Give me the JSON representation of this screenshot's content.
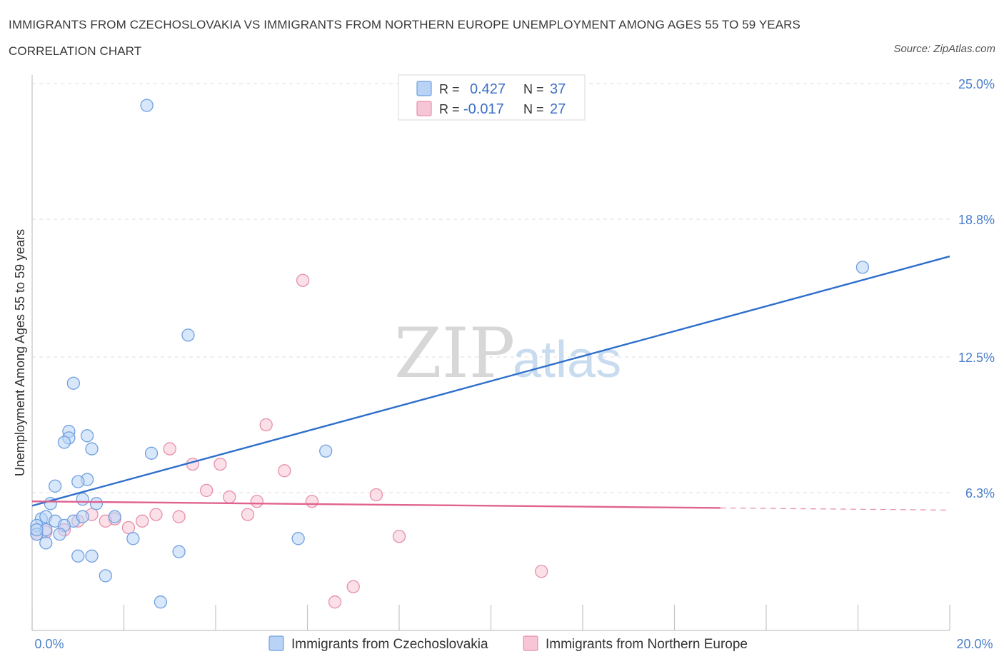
{
  "chart_data": {
    "type": "scatter",
    "title": "IMMIGRANTS FROM CZECHOSLOVAKIA VS IMMIGRANTS FROM NORTHERN EUROPE UNEMPLOYMENT AMONG AGES 55 TO 59 YEARS CORRELATION CHART",
    "source": "Source: ZipAtlas.com",
    "xlabel": "",
    "ylabel": "Unemployment Among Ages 55 to 59 years",
    "xlim": [
      0,
      20
    ],
    "ylim": [
      0,
      25
    ],
    "x_tick_labels": [
      "0.0%",
      "20.0%"
    ],
    "y_ticks": [
      6.3,
      12.5,
      18.8,
      25.0
    ],
    "y_tick_labels": [
      "6.3%",
      "12.5%",
      "18.8%",
      "25.0%"
    ],
    "grid": true,
    "watermark": {
      "zip": "ZIP",
      "atlas": "atlas"
    },
    "series": [
      {
        "name": "Immigrants from Czechoslovakia",
        "color": "#6fa0e0",
        "fill": "#b8d3f5",
        "line_color": "#2e6fcb",
        "R": "0.427",
        "N": "37",
        "trend": {
          "x0": 0.0,
          "y0": 5.7,
          "x1": 20.0,
          "y1": 17.1
        },
        "points": [
          [
            2.5,
            24.0
          ],
          [
            18.1,
            16.6
          ],
          [
            3.4,
            13.5
          ],
          [
            0.9,
            11.3
          ],
          [
            0.8,
            9.1
          ],
          [
            1.2,
            8.9
          ],
          [
            0.8,
            8.8
          ],
          [
            0.7,
            8.6
          ],
          [
            1.3,
            8.3
          ],
          [
            2.6,
            8.1
          ],
          [
            6.4,
            8.2
          ],
          [
            1.2,
            6.9
          ],
          [
            1.0,
            6.8
          ],
          [
            0.5,
            6.6
          ],
          [
            0.4,
            5.8
          ],
          [
            1.1,
            6.0
          ],
          [
            1.4,
            5.8
          ],
          [
            0.2,
            5.1
          ],
          [
            0.3,
            5.2
          ],
          [
            0.5,
            5.0
          ],
          [
            0.9,
            5.0
          ],
          [
            1.1,
            5.2
          ],
          [
            1.8,
            5.2
          ],
          [
            0.7,
            4.8
          ],
          [
            0.1,
            4.8
          ],
          [
            0.3,
            4.6
          ],
          [
            0.1,
            4.4
          ],
          [
            0.6,
            4.4
          ],
          [
            0.3,
            4.0
          ],
          [
            2.2,
            4.2
          ],
          [
            5.8,
            4.2
          ],
          [
            3.2,
            3.6
          ],
          [
            1.0,
            3.4
          ],
          [
            1.3,
            3.4
          ],
          [
            1.6,
            2.5
          ],
          [
            2.8,
            1.3
          ],
          [
            0.1,
            4.6
          ]
        ]
      },
      {
        "name": "Immigrants from Northern Europe",
        "color": "#e78fab",
        "fill": "#f7c6d6",
        "line_color": "#e0628f",
        "R": "-0.017",
        "N": "27",
        "trend": {
          "x0": 0.0,
          "y0": 5.9,
          "x1": 15.0,
          "y1": 5.6
        },
        "trend_dashed": {
          "x0": 15.0,
          "y0": 5.6,
          "x1": 20.0,
          "y1": 5.5
        },
        "points": [
          [
            5.9,
            16.0
          ],
          [
            5.1,
            9.4
          ],
          [
            3.0,
            8.3
          ],
          [
            3.5,
            7.6
          ],
          [
            4.1,
            7.6
          ],
          [
            5.5,
            7.3
          ],
          [
            3.8,
            6.4
          ],
          [
            4.3,
            6.1
          ],
          [
            7.5,
            6.2
          ],
          [
            4.9,
            5.9
          ],
          [
            6.1,
            5.9
          ],
          [
            4.7,
            5.3
          ],
          [
            2.7,
            5.3
          ],
          [
            3.2,
            5.2
          ],
          [
            1.3,
            5.3
          ],
          [
            1.8,
            5.1
          ],
          [
            1.6,
            5.0
          ],
          [
            2.4,
            5.0
          ],
          [
            1.0,
            5.0
          ],
          [
            2.1,
            4.7
          ],
          [
            0.7,
            4.6
          ],
          [
            0.3,
            4.5
          ],
          [
            0.1,
            4.4
          ],
          [
            8.0,
            4.3
          ],
          [
            11.1,
            2.7
          ],
          [
            7.0,
            2.0
          ],
          [
            6.6,
            1.3
          ]
        ]
      }
    ]
  }
}
